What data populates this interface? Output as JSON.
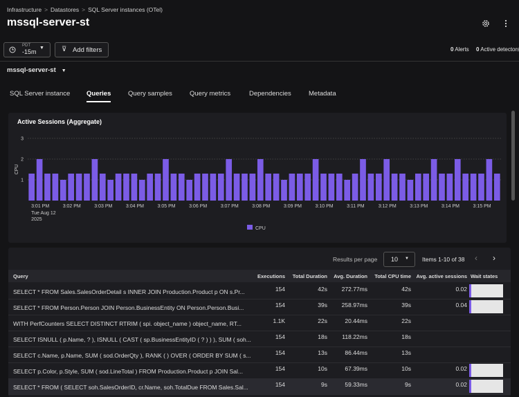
{
  "breadcrumb": [
    "Infrastructure",
    "Datastores",
    "SQL Server instances (OTel)"
  ],
  "title": "mssql-server-st",
  "time_picker": {
    "zone": "PDT",
    "range": "-15m"
  },
  "add_filters": "Add filters",
  "alerts": {
    "count": 0,
    "label": "Alerts"
  },
  "detectors": {
    "count": 0,
    "label": "Active detectors"
  },
  "instance_selector": "mssql-server-st",
  "tabs": [
    "SQL Server instance",
    "Queries",
    "Query samples",
    "Query metrics",
    "Dependencies",
    "Metadata"
  ],
  "active_tab": 1,
  "chart_data": {
    "type": "bar",
    "title": "Active Sessions (Aggregate)",
    "y_label": "CPU",
    "categories": [
      null,
      "3:01 PM",
      null,
      null,
      null,
      "3:02 PM",
      null,
      null,
      null,
      "3:03 PM",
      null,
      null,
      null,
      "3:04 PM",
      null,
      null,
      null,
      "3:05 PM",
      null,
      null,
      null,
      "3:06 PM",
      null,
      null,
      null,
      "3:07 PM",
      null,
      null,
      null,
      "3:08 PM",
      null,
      null,
      null,
      "3:09 PM",
      null,
      null,
      null,
      "3:10 PM",
      null,
      null,
      null,
      "3:11 PM",
      null,
      null,
      null,
      "3:12 PM",
      null,
      null,
      null,
      "3:13 PM",
      null,
      null,
      null,
      "3:14 PM",
      null,
      null,
      null,
      "3:15 PM",
      null,
      null
    ],
    "x_date_lines": [
      "Tue Aug 12",
      "2025"
    ],
    "series": [
      {
        "name": "CPU",
        "color": "#7b5ce6",
        "values": [
          1.3,
          2,
          1.3,
          1.3,
          1,
          1.3,
          1.3,
          1.3,
          2,
          1.3,
          1,
          1.3,
          1.3,
          1.3,
          1,
          1.3,
          1.3,
          2,
          1.3,
          1.3,
          1,
          1.3,
          1.3,
          1.3,
          1.3,
          2,
          1.3,
          1.3,
          1.3,
          2,
          1.3,
          1.3,
          1,
          1.3,
          1.3,
          1.3,
          2,
          1.3,
          1.3,
          1.3,
          1,
          1.3,
          2,
          1.3,
          1.3,
          2,
          1.3,
          1.3,
          1,
          1.3,
          1.3,
          2,
          1.3,
          1.3,
          2,
          1.3,
          1.3,
          1.3,
          2,
          1.3
        ]
      }
    ],
    "ylim": [
      0,
      3
    ],
    "yticks": [
      1,
      2,
      3
    ],
    "grid": true
  },
  "table": {
    "results_per_page_label": "Results per page",
    "page_size": 10,
    "range_label": "Items 1-10 of 38",
    "columns": [
      "Query",
      "Executions",
      "Total Duration",
      "Avg. Duration",
      "Total CPU time",
      "Avg. active sessions",
      "Wait states"
    ],
    "rows": [
      [
        "SELECT * FROM Sales.SalesOrderDetail s INNER JOIN Production.Product p ON s.Pr...",
        154,
        "42s",
        "272.77ms",
        "42s",
        0.02
      ],
      [
        "SELECT * FROM Person.Person JOIN Person.BusinessEntity ON Person.Person.Busi...",
        154,
        "39s",
        "258.97ms",
        "39s",
        0.04
      ],
      [
        "WITH PerfCounters SELECT DISTINCT RTRIM ( spi. object_name ) object_name, RT...",
        "1.1K",
        "22s",
        "20.44ms",
        "22s",
        null
      ],
      [
        "SELECT ISNULL ( p.Name, ? ), ISNULL ( CAST ( sp.BusinessEntityID ( ? ) ) ), SUM ( soh...",
        154,
        "18s",
        "118.22ms",
        "18s",
        null
      ],
      [
        "SELECT c.Name, p.Name, SUM ( sod.OrderQty ), RANK ( ) OVER ( ORDER BY SUM ( s...",
        154,
        "13s",
        "86.44ms",
        "13s",
        null
      ],
      [
        "SELECT p.Color, p.Style, SUM ( sod.LineTotal ) FROM Production.Product p JOIN Sal...",
        154,
        "10s",
        "67.39ms",
        "10s",
        0.02
      ],
      [
        "SELECT * FROM ( SELECT soh.SalesOrderID, cr.Name, soh.TotalDue FROM Sales.Sal...",
        154,
        "9s",
        "59.33ms",
        "9s",
        0.02
      ]
    ]
  }
}
